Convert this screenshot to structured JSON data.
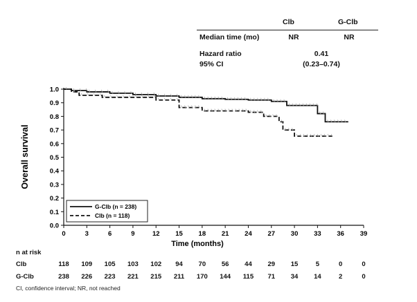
{
  "stats_table": {
    "col_headers": [
      "Clb",
      "G-Clb"
    ],
    "median_label": "Median time (mo)",
    "median_values": [
      "NR",
      "NR"
    ],
    "hazard_label": "Hazard ratio",
    "hazard_value": "0.41",
    "ci_label": "95% CI",
    "ci_value": "(0.23–0.74)"
  },
  "chart_data": {
    "type": "line",
    "title": "",
    "xlabel": "Time (months)",
    "ylabel": "Overall survival",
    "xlim": [
      0,
      39
    ],
    "ylim": [
      0,
      1.0
    ],
    "x_ticks": [
      "0",
      "3",
      "6",
      "9",
      "12",
      "15",
      "18",
      "21",
      "24",
      "27",
      "30",
      "33",
      "36",
      "39"
    ],
    "y_ticks": [
      "0.0",
      "0.1",
      "0.2",
      "0.3",
      "0.4",
      "0.5",
      "0.6",
      "0.7",
      "0.8",
      "0.9",
      "1.0"
    ],
    "legend": [
      "G-Clb (n = 238)",
      "Clb (n = 118)"
    ],
    "legend_position": "bottom-left",
    "series": [
      {
        "name": "G-Clb (n = 238)",
        "style": "solid",
        "points": [
          [
            0,
            1.0
          ],
          [
            1,
            0.99
          ],
          [
            3,
            0.98
          ],
          [
            6,
            0.97
          ],
          [
            9,
            0.96
          ],
          [
            12,
            0.95
          ],
          [
            15,
            0.94
          ],
          [
            18,
            0.93
          ],
          [
            21,
            0.925
          ],
          [
            24,
            0.92
          ],
          [
            27,
            0.91
          ],
          [
            29,
            0.88
          ],
          [
            33,
            0.82
          ],
          [
            34,
            0.76
          ],
          [
            37,
            0.76
          ]
        ]
      },
      {
        "name": "Clb (n = 118)",
        "style": "dashed",
        "points": [
          [
            0,
            1.0
          ],
          [
            1,
            0.98
          ],
          [
            2,
            0.955
          ],
          [
            5,
            0.94
          ],
          [
            12,
            0.92
          ],
          [
            15,
            0.865
          ],
          [
            18,
            0.84
          ],
          [
            24,
            0.83
          ],
          [
            26,
            0.8
          ],
          [
            28,
            0.76
          ],
          [
            28.5,
            0.7
          ],
          [
            30,
            0.655
          ],
          [
            35,
            0.655
          ]
        ]
      }
    ]
  },
  "risk_table": {
    "title": "n at risk",
    "rows": [
      {
        "label": "Clb",
        "values": [
          "118",
          "109",
          "105",
          "103",
          "102",
          "94",
          "70",
          "56",
          "44",
          "29",
          "15",
          "5",
          "0",
          "0"
        ]
      },
      {
        "label": "G-Clb",
        "values": [
          "238",
          "226",
          "223",
          "221",
          "215",
          "211",
          "170",
          "144",
          "115",
          "71",
          "34",
          "14",
          "2",
          "0"
        ]
      }
    ]
  },
  "footnote": "CI, confidence interval; NR, not reached"
}
